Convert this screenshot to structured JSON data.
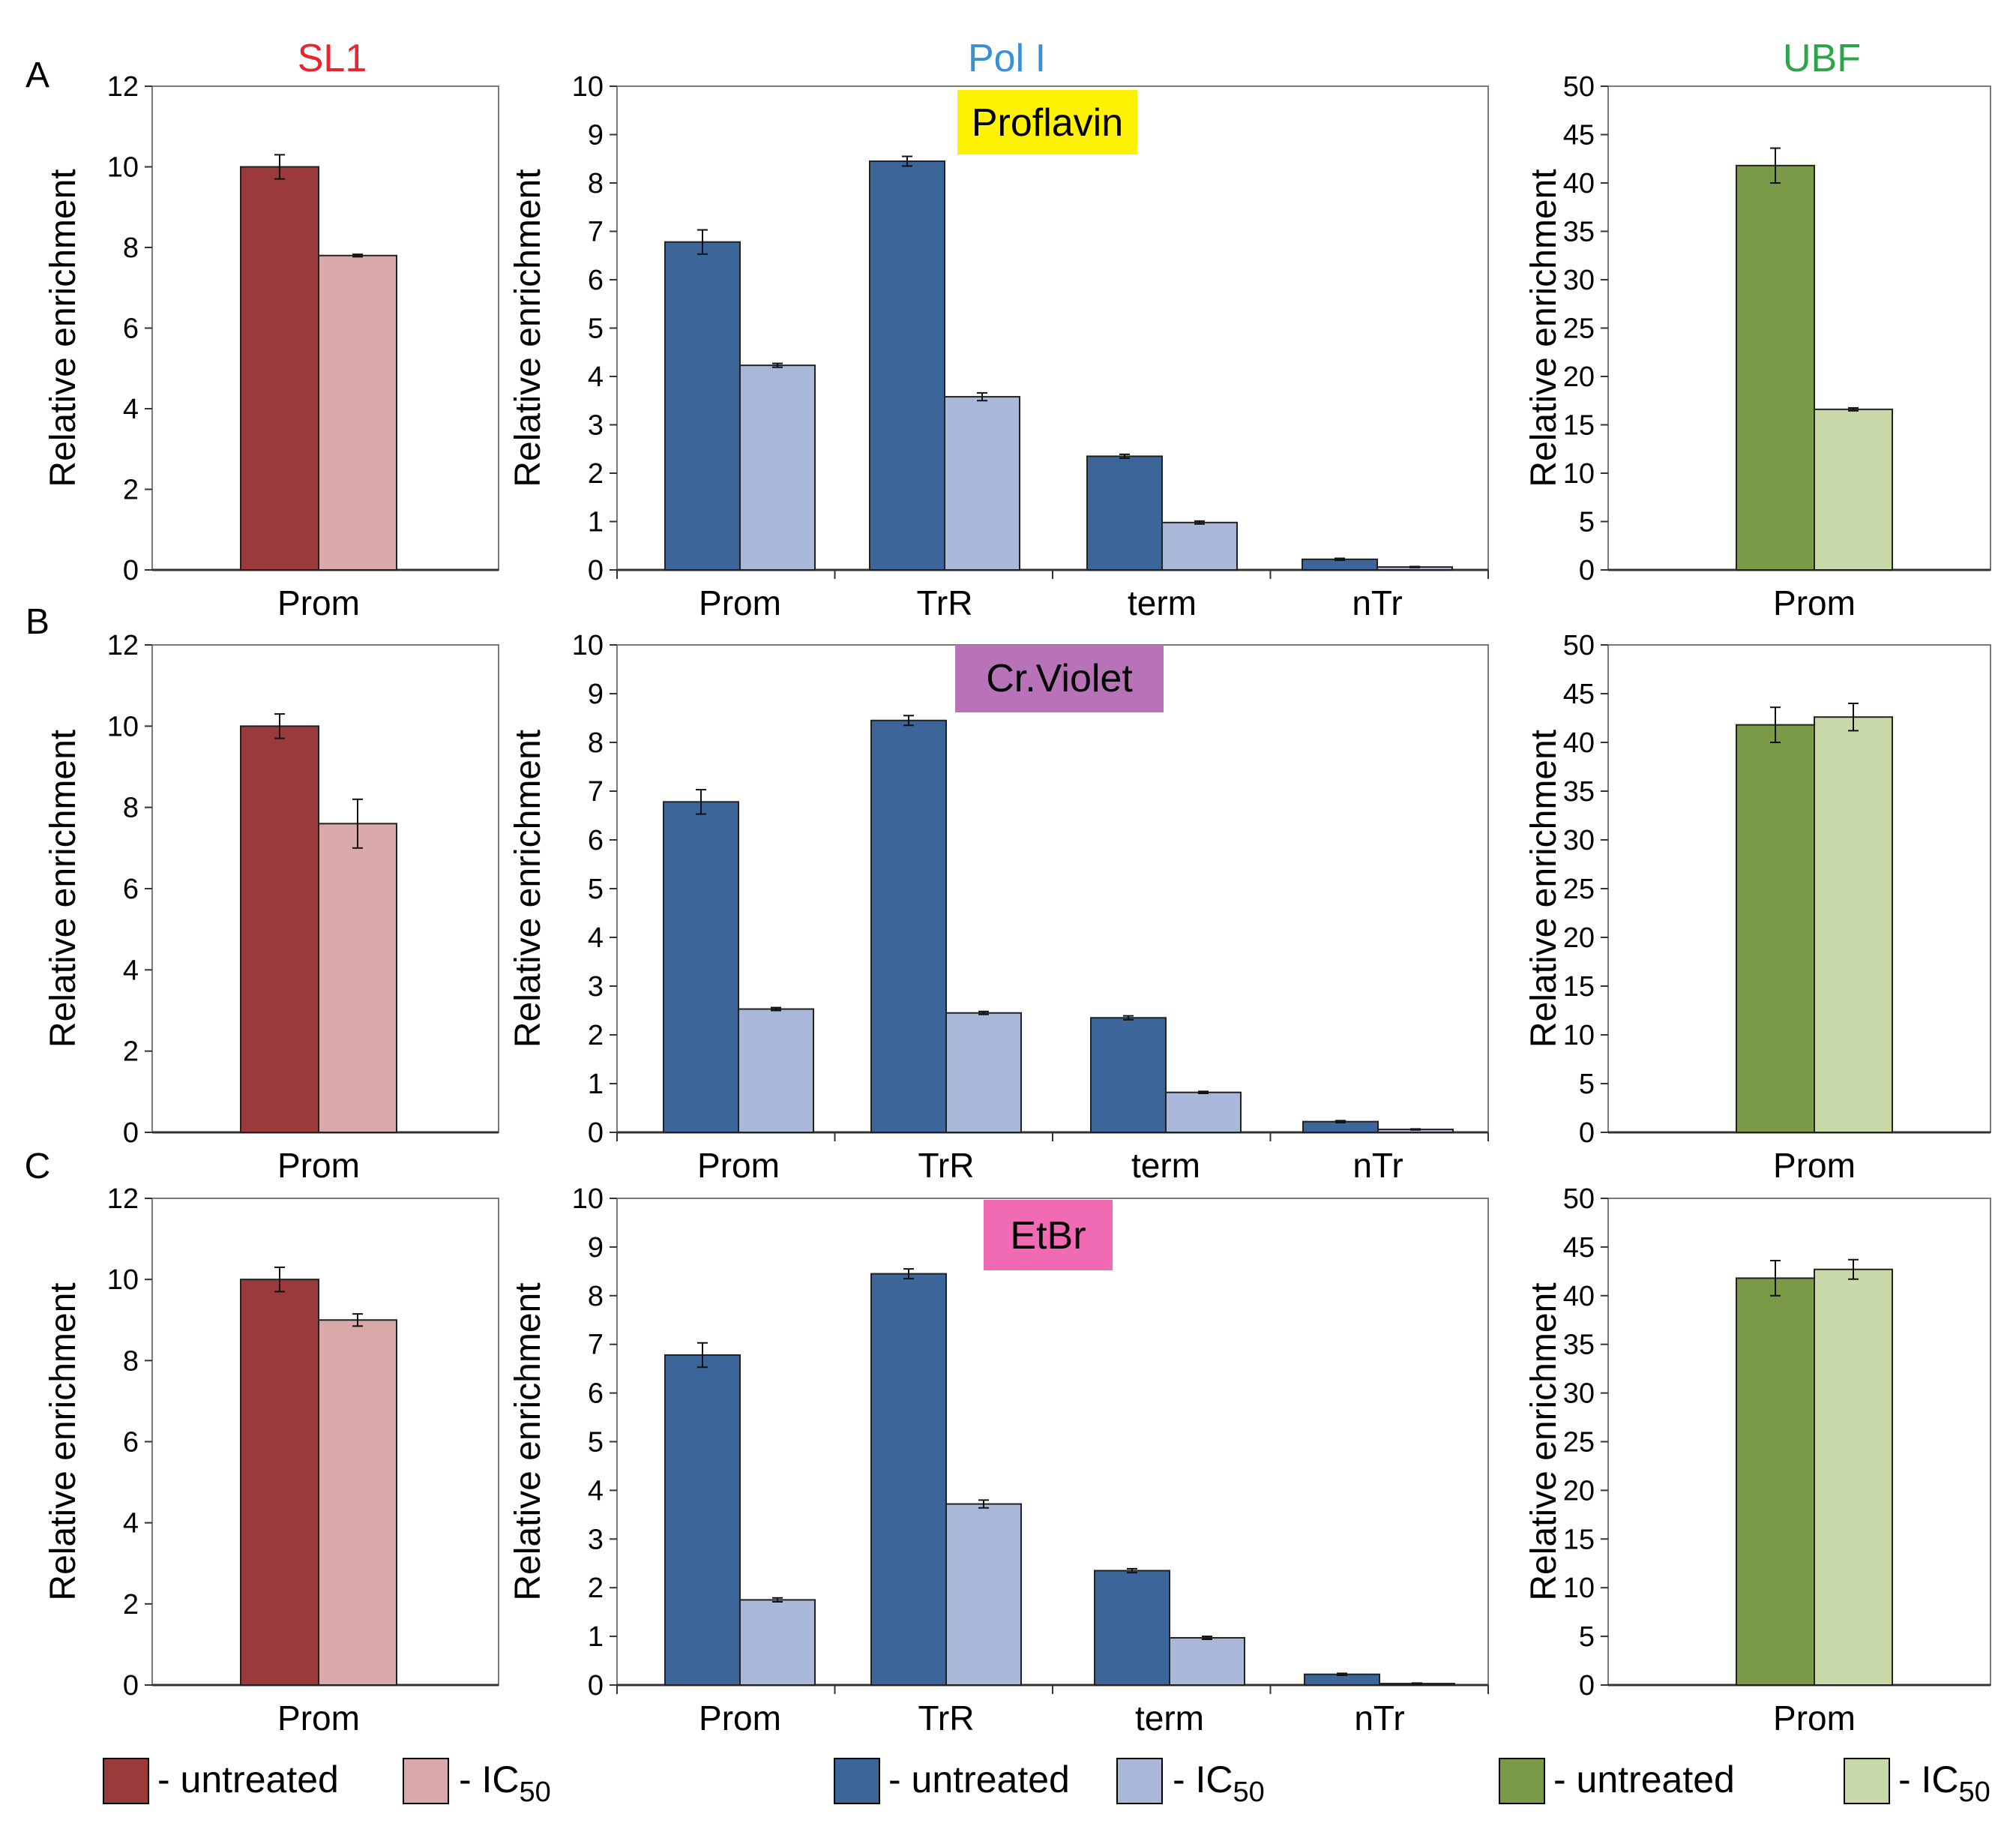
{
  "column_titles": [
    {
      "text": "SL1",
      "color": "#e8262f"
    },
    {
      "text": "Pol I",
      "color": "#3a8fd6"
    },
    {
      "text": "UBF",
      "color": "#2ea34a"
    }
  ],
  "row_labels": [
    "A",
    "B",
    "C"
  ],
  "drug_labels": [
    {
      "text": "Proflavin",
      "color": "#fff200"
    },
    {
      "text": "Cr.Violet",
      "color": "#b873b8"
    },
    {
      "text": "EtBr",
      "color": "#f06ab4"
    }
  ],
  "series_names": [
    "untreated",
    "IC50"
  ],
  "colors": {
    "sl1_untreated": "#9b3a3a",
    "sl1_ic50": "#d9a8a8",
    "pol_untreated": "#3c6699",
    "pol_ic50": "#a9b8d8",
    "ubf_untreated": "#7a9a48",
    "ubf_ic50": "#c8d8a8"
  },
  "legends": [
    {
      "untreated_label": "- untreated",
      "ic50_prefix": "- IC",
      "ic50_sub": "50"
    },
    {
      "untreated_label": "- untreated",
      "ic50_prefix": "- IC",
      "ic50_sub": "50"
    },
    {
      "untreated_label": "- untreated",
      "ic50_prefix": "- IC",
      "ic50_sub": "50"
    }
  ],
  "chart_data": [
    {
      "id": "A-SL1",
      "type": "bar",
      "ylabel": "Relative enrichment",
      "ylim": [
        0,
        12
      ],
      "yticks": [
        "0",
        "2",
        "4",
        "6",
        "8",
        "10",
        "12"
      ],
      "categories": [
        "Prom"
      ],
      "series": [
        {
          "name": "untreated",
          "values": [
            10.0
          ],
          "errors": [
            0.3
          ]
        },
        {
          "name": "IC50",
          "values": [
            7.8
          ],
          "errors": [
            0.03
          ]
        }
      ]
    },
    {
      "id": "A-PolI",
      "type": "bar",
      "ylabel": "Relative enrichment",
      "ylim": [
        0,
        10
      ],
      "yticks": [
        "0",
        "1",
        "2",
        "3",
        "4",
        "5",
        "6",
        "7",
        "8",
        "9",
        "10"
      ],
      "categories": [
        "Prom",
        "TrR",
        "term",
        "nTr"
      ],
      "series": [
        {
          "name": "untreated",
          "values": [
            6.78,
            8.45,
            2.35,
            0.22
          ],
          "errors": [
            0.25,
            0.1,
            0.04,
            0.02
          ]
        },
        {
          "name": "IC50",
          "values": [
            4.23,
            3.58,
            0.98,
            0.06
          ],
          "errors": [
            0.04,
            0.08,
            0.03,
            0.01
          ]
        }
      ]
    },
    {
      "id": "A-UBF",
      "type": "bar",
      "ylabel": "Relative enrichment",
      "ylim": [
        0,
        50
      ],
      "yticks": [
        "0",
        "5",
        "10",
        "15",
        "20",
        "25",
        "30",
        "35",
        "40",
        "45",
        "50"
      ],
      "categories": [
        "Prom"
      ],
      "series": [
        {
          "name": "untreated",
          "values": [
            41.8
          ],
          "errors": [
            1.8
          ]
        },
        {
          "name": "IC50",
          "values": [
            16.6
          ],
          "errors": [
            0.15
          ]
        }
      ]
    },
    {
      "id": "B-SL1",
      "type": "bar",
      "ylabel": "Relative enrichment",
      "ylim": [
        0,
        12
      ],
      "yticks": [
        "0",
        "2",
        "4",
        "6",
        "8",
        "10",
        "12"
      ],
      "categories": [
        "Prom"
      ],
      "series": [
        {
          "name": "untreated",
          "values": [
            10.0
          ],
          "errors": [
            0.3
          ]
        },
        {
          "name": "IC50",
          "values": [
            7.6
          ],
          "errors": [
            0.6
          ]
        }
      ]
    },
    {
      "id": "B-PolI",
      "type": "bar",
      "ylabel": "Relative enrichment",
      "ylim": [
        0,
        10
      ],
      "yticks": [
        "0",
        "1",
        "2",
        "3",
        "4",
        "5",
        "6",
        "7",
        "8",
        "9",
        "10"
      ],
      "categories": [
        "Prom",
        "TrR",
        "term",
        "nTr"
      ],
      "series": [
        {
          "name": "untreated",
          "values": [
            6.78,
            8.45,
            2.35,
            0.22
          ],
          "errors": [
            0.25,
            0.1,
            0.04,
            0.02
          ]
        },
        {
          "name": "IC50",
          "values": [
            2.53,
            2.45,
            0.82,
            0.06
          ],
          "errors": [
            0.03,
            0.03,
            0.02,
            0.01
          ]
        }
      ]
    },
    {
      "id": "B-UBF",
      "type": "bar",
      "ylabel": "Relative enrichment",
      "ylim": [
        0,
        50
      ],
      "yticks": [
        "0",
        "5",
        "10",
        "15",
        "20",
        "25",
        "30",
        "35",
        "40",
        "45",
        "50"
      ],
      "categories": [
        "Prom"
      ],
      "series": [
        {
          "name": "untreated",
          "values": [
            41.8
          ],
          "errors": [
            1.8
          ]
        },
        {
          "name": "IC50",
          "values": [
            42.6
          ],
          "errors": [
            1.4
          ]
        }
      ]
    },
    {
      "id": "C-SL1",
      "type": "bar",
      "ylabel": "Relative enrichment",
      "ylim": [
        0,
        12
      ],
      "yticks": [
        "0",
        "2",
        "4",
        "6",
        "8",
        "10",
        "12"
      ],
      "categories": [
        "Prom"
      ],
      "series": [
        {
          "name": "untreated",
          "values": [
            10.0
          ],
          "errors": [
            0.3
          ]
        },
        {
          "name": "IC50",
          "values": [
            9.0
          ],
          "errors": [
            0.15
          ]
        }
      ]
    },
    {
      "id": "C-PolI",
      "type": "bar",
      "ylabel": "Relative enrichment",
      "ylim": [
        0,
        10
      ],
      "yticks": [
        "0",
        "1",
        "2",
        "3",
        "4",
        "5",
        "6",
        "7",
        "8",
        "9",
        "10"
      ],
      "categories": [
        "Prom",
        "TrR",
        "term",
        "nTr"
      ],
      "series": [
        {
          "name": "untreated",
          "values": [
            6.78,
            8.45,
            2.35,
            0.22
          ],
          "errors": [
            0.25,
            0.1,
            0.04,
            0.02
          ]
        },
        {
          "name": "IC50",
          "values": [
            1.75,
            3.72,
            0.97,
            0.03
          ],
          "errors": [
            0.04,
            0.08,
            0.03,
            0.01
          ]
        }
      ]
    },
    {
      "id": "C-UBF",
      "type": "bar",
      "ylabel": "Relative enrichment",
      "ylim": [
        0,
        50
      ],
      "yticks": [
        "0",
        "5",
        "10",
        "15",
        "20",
        "25",
        "30",
        "35",
        "40",
        "45",
        "50"
      ],
      "categories": [
        "Prom"
      ],
      "series": [
        {
          "name": "untreated",
          "values": [
            41.8
          ],
          "errors": [
            1.8
          ]
        },
        {
          "name": "IC50",
          "values": [
            42.7
          ],
          "errors": [
            1.0
          ]
        }
      ]
    }
  ]
}
